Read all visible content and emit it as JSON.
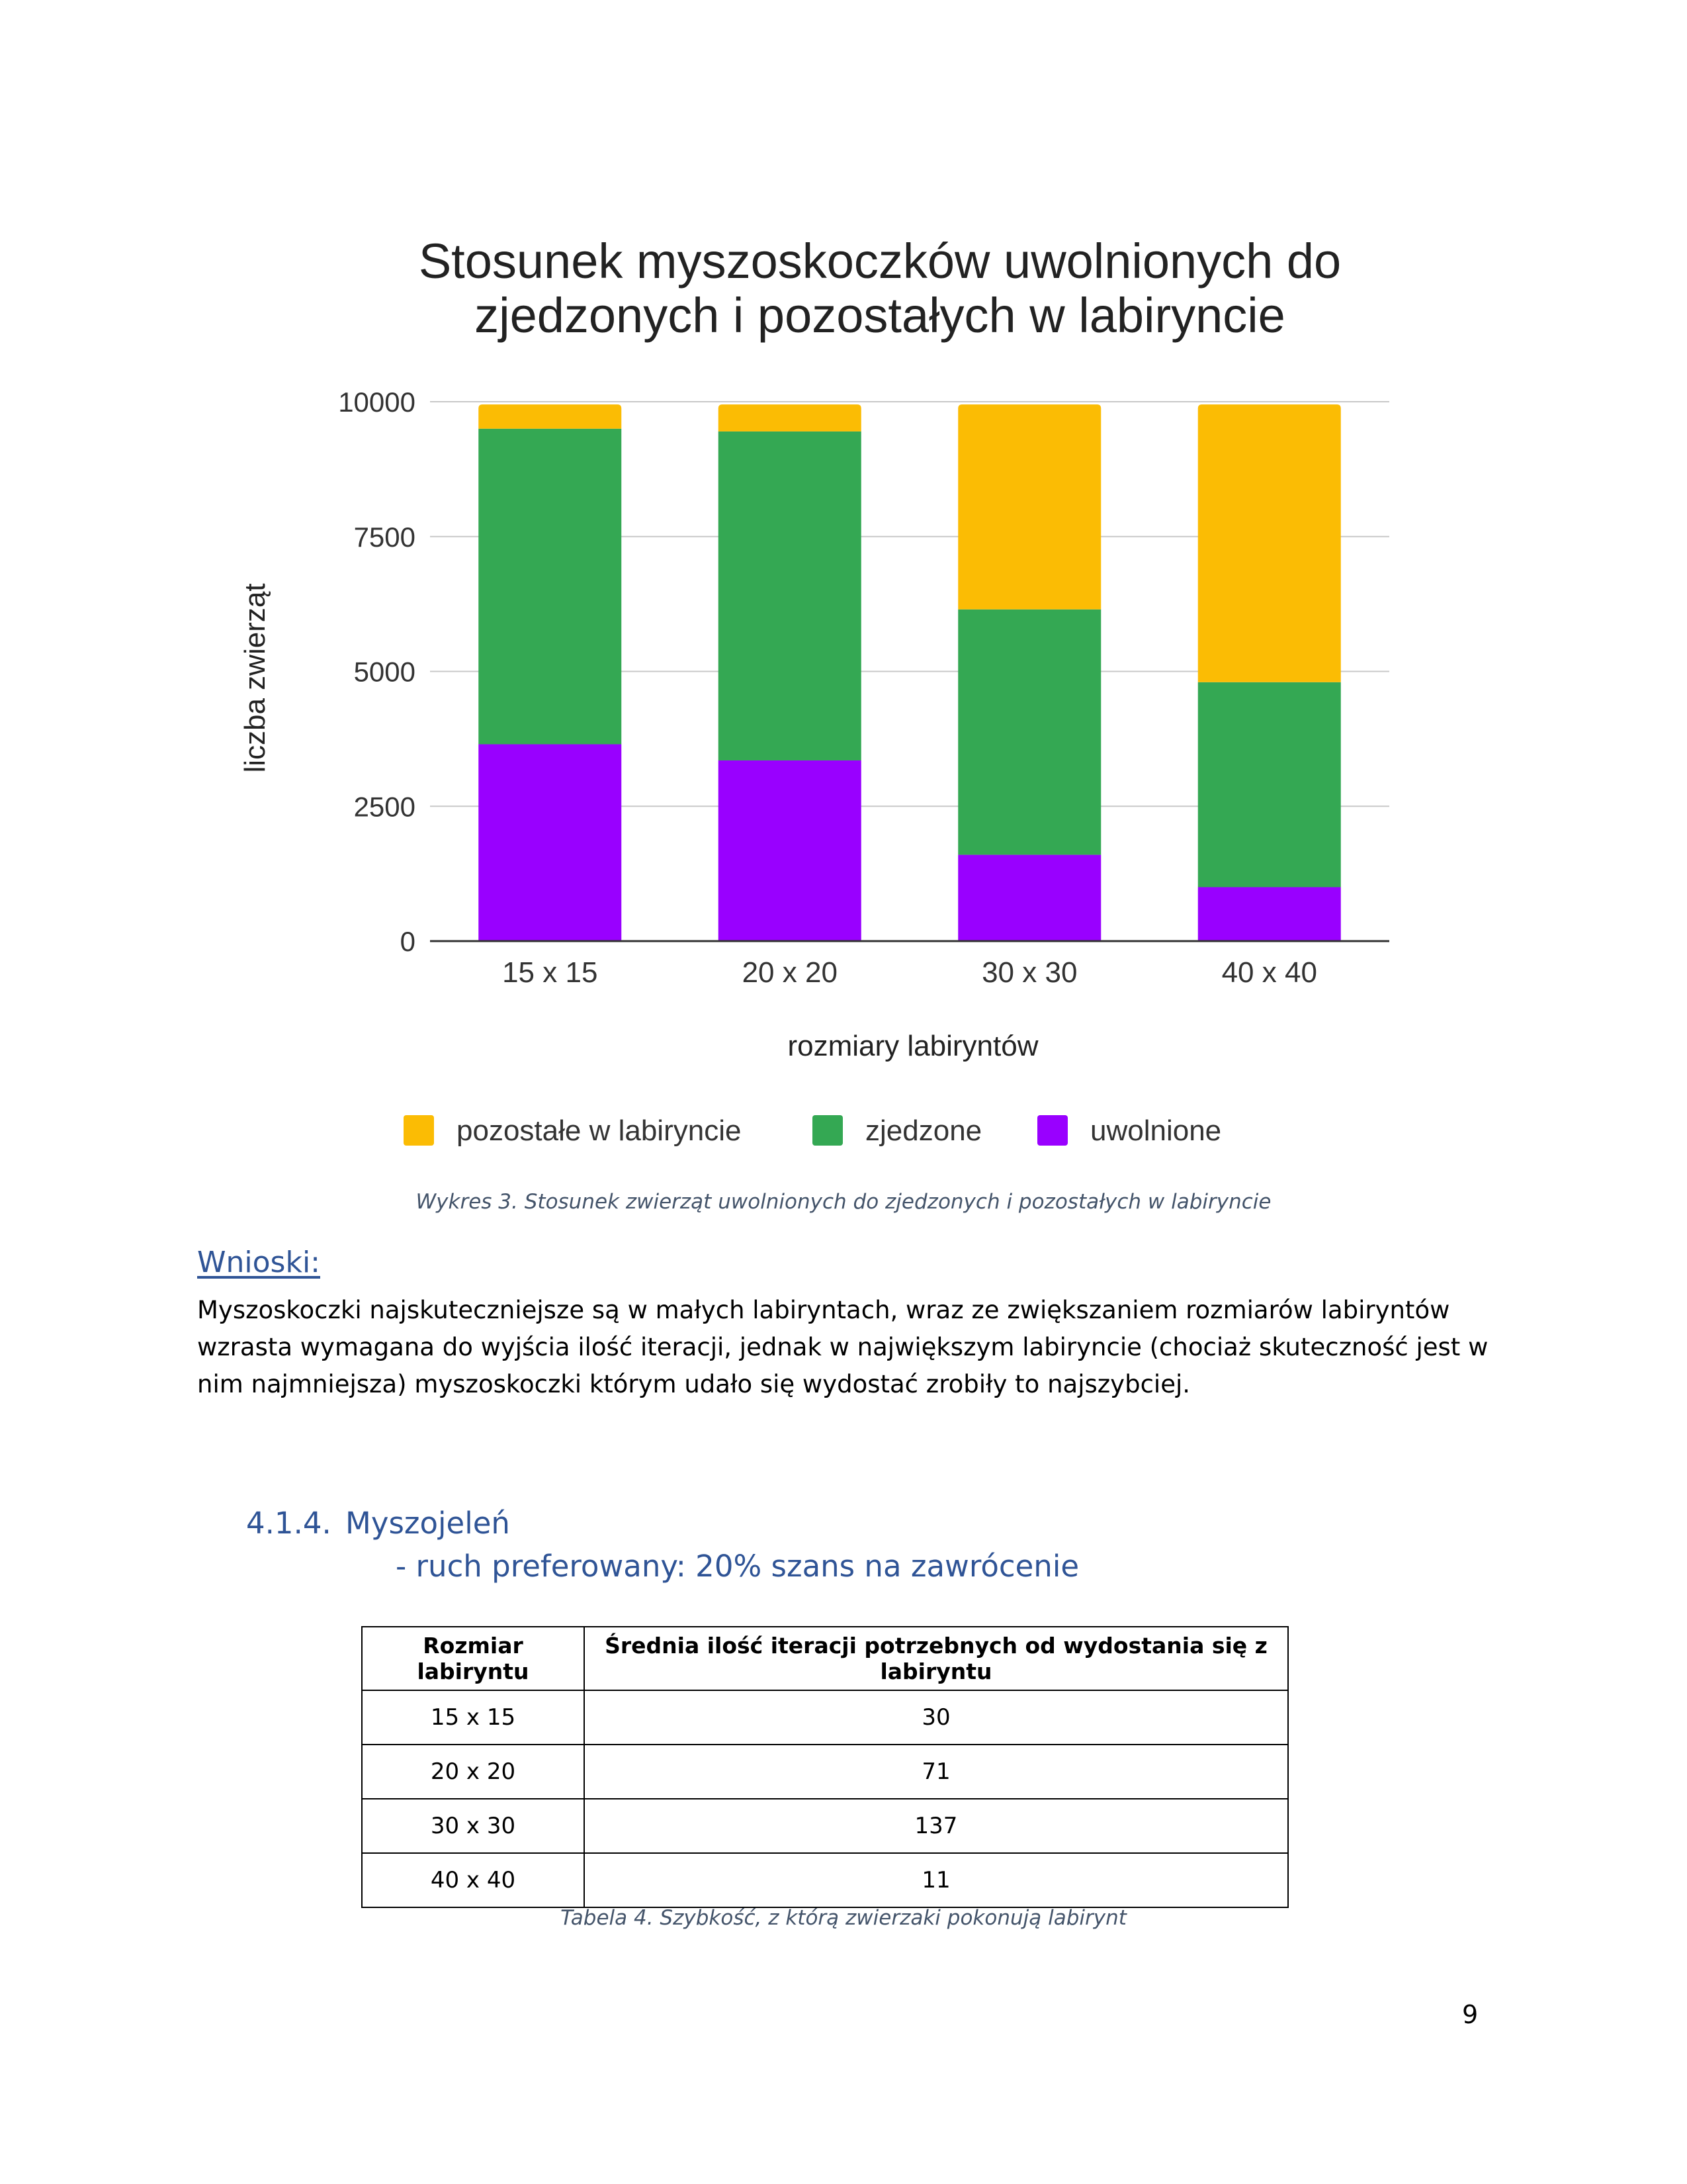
{
  "chart_data": {
    "type": "bar",
    "stacked": true,
    "title": "Stosunek myszoskoczków uwolnionych do zjedzonych i pozostałych w labiryncie",
    "title_lines": [
      "Stosunek myszoskoczków uwolnionych do",
      "zjedzonych i pozostałych w labiryncie"
    ],
    "xlabel": "rozmiary labiryntów",
    "ylabel": "liczba zwierząt",
    "categories": [
      "15 x 15",
      "20 x 20",
      "30 x 30",
      "40 x 40"
    ],
    "ylim": [
      0,
      10000
    ],
    "yticks": [
      0,
      2500,
      5000,
      7500,
      10000
    ],
    "grid": true,
    "legend_position": "bottom",
    "series": [
      {
        "name": "uwolnione",
        "color": "#9900ff",
        "values": [
          3650,
          3350,
          1600,
          1000
        ]
      },
      {
        "name": "zjedzone",
        "color": "#34a853",
        "values": [
          5850,
          6100,
          4550,
          3800
        ]
      },
      {
        "name": "pozostałe w labiryncie",
        "color": "#fbbc04",
        "values": [
          450,
          500,
          3800,
          5150
        ]
      }
    ],
    "legend_order": [
      "pozostałe w labiryncie",
      "zjedzone",
      "uwolnione"
    ]
  },
  "figure_caption": "Wykres 3. Stosunek zwierząt uwolnionych do zjedzonych i pozostałych w labiryncie",
  "conclusions": {
    "heading": "Wnioski:",
    "text": "Myszoskoczki najskuteczniejsze są w małych labiryntach, wraz ze zwiększaniem rozmiarów labiryntów wzrasta wymagana do wyjścia ilość iteracji, jednak w największym labiryncie (chociaż skuteczność jest w nim najmniejsza) myszoskoczki którym udało się wydostać zrobiły to najszybciej."
  },
  "section": {
    "number": "4.1.4.",
    "title": "Myszojeleń",
    "subtitle": "- ruch preferowany: 20% szans na zawrócenie"
  },
  "table": {
    "headers": [
      "Rozmiar labiryntu",
      "Średnia ilość iteracji potrzebnych od wydostania się z labiryntu"
    ],
    "rows": [
      [
        "15 x 15",
        "30"
      ],
      [
        "20 x 20",
        "71"
      ],
      [
        "30 x 30",
        "137"
      ],
      [
        "40 x 40",
        "11"
      ]
    ],
    "caption": "Tabela 4. Szybkość, z którą zwierzaki pokonują labirynt"
  },
  "page_number": "9"
}
